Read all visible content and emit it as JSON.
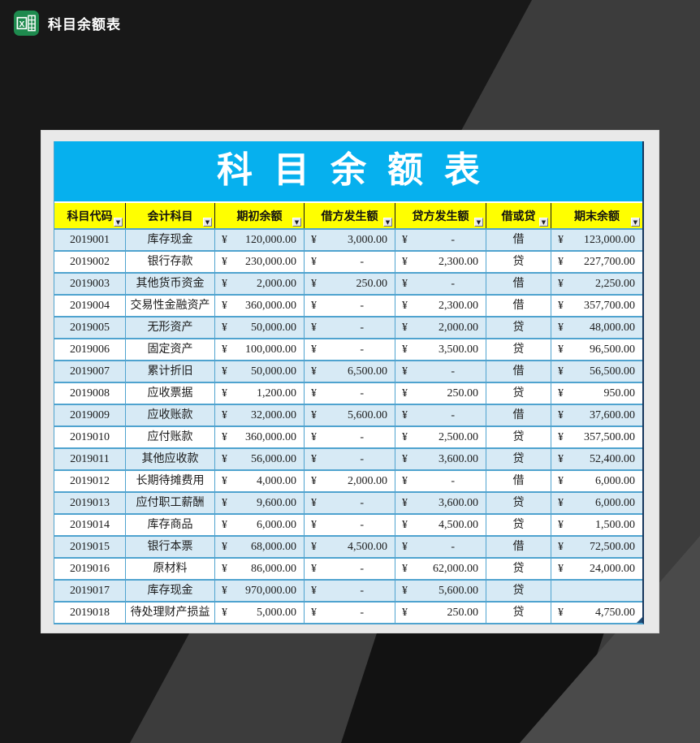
{
  "window": {
    "title": "科目余额表",
    "icon": "excel-logo"
  },
  "sheet": {
    "title": "科目余额表",
    "currency": "¥",
    "filter_icon": "▼",
    "columns": [
      {
        "key": "code",
        "label": "科目代码",
        "type": "text"
      },
      {
        "key": "subject",
        "label": "会计科目",
        "type": "text"
      },
      {
        "key": "opening",
        "label": "期初余额",
        "type": "money"
      },
      {
        "key": "debit",
        "label": "借方发生额",
        "type": "money"
      },
      {
        "key": "credit",
        "label": "贷方发生额",
        "type": "money"
      },
      {
        "key": "direction",
        "label": "借或贷",
        "type": "text"
      },
      {
        "key": "closing",
        "label": "期末余额",
        "type": "money"
      }
    ],
    "rows": [
      {
        "code": "2019001",
        "subject": "库存现金",
        "opening": "120,000.00",
        "debit": "3,000.00",
        "credit": "-",
        "direction": "借",
        "closing": "123,000.00"
      },
      {
        "code": "2019002",
        "subject": "银行存款",
        "opening": "230,000.00",
        "debit": "-",
        "credit": "2,300.00",
        "direction": "贷",
        "closing": "227,700.00"
      },
      {
        "code": "2019003",
        "subject": "其他货币资金",
        "opening": "2,000.00",
        "debit": "250.00",
        "credit": "-",
        "direction": "借",
        "closing": "2,250.00"
      },
      {
        "code": "2019004",
        "subject": "交易性金融资产",
        "opening": "360,000.00",
        "debit": "-",
        "credit": "2,300.00",
        "direction": "借",
        "closing": "357,700.00"
      },
      {
        "code": "2019005",
        "subject": "无形资产",
        "opening": "50,000.00",
        "debit": "-",
        "credit": "2,000.00",
        "direction": "贷",
        "closing": "48,000.00"
      },
      {
        "code": "2019006",
        "subject": "固定资产",
        "opening": "100,000.00",
        "debit": "-",
        "credit": "3,500.00",
        "direction": "贷",
        "closing": "96,500.00"
      },
      {
        "code": "2019007",
        "subject": "累计折旧",
        "opening": "50,000.00",
        "debit": "6,500.00",
        "credit": "-",
        "direction": "借",
        "closing": "56,500.00"
      },
      {
        "code": "2019008",
        "subject": "应收票据",
        "opening": "1,200.00",
        "debit": "-",
        "credit": "250.00",
        "direction": "贷",
        "closing": "950.00"
      },
      {
        "code": "2019009",
        "subject": "应收账款",
        "opening": "32,000.00",
        "debit": "5,600.00",
        "credit": "-",
        "direction": "借",
        "closing": "37,600.00"
      },
      {
        "code": "2019010",
        "subject": "应付账款",
        "opening": "360,000.00",
        "debit": "-",
        "credit": "2,500.00",
        "direction": "贷",
        "closing": "357,500.00"
      },
      {
        "code": "2019011",
        "subject": "其他应收款",
        "opening": "56,000.00",
        "debit": "-",
        "credit": "3,600.00",
        "direction": "贷",
        "closing": "52,400.00"
      },
      {
        "code": "2019012",
        "subject": "长期待摊费用",
        "opening": "4,000.00",
        "debit": "2,000.00",
        "credit": "-",
        "direction": "借",
        "closing": "6,000.00"
      },
      {
        "code": "2019013",
        "subject": "应付职工薪酬",
        "opening": "9,600.00",
        "debit": "-",
        "credit": "3,600.00",
        "direction": "贷",
        "closing": "6,000.00"
      },
      {
        "code": "2019014",
        "subject": "库存商品",
        "opening": "6,000.00",
        "debit": "-",
        "credit": "4,500.00",
        "direction": "贷",
        "closing": "1,500.00"
      },
      {
        "code": "2019015",
        "subject": "银行本票",
        "opening": "68,000.00",
        "debit": "4,500.00",
        "credit": "-",
        "direction": "借",
        "closing": "72,500.00"
      },
      {
        "code": "2019016",
        "subject": "原材料",
        "opening": "86,000.00",
        "debit": "-",
        "credit": "62,000.00",
        "direction": "贷",
        "closing": "24,000.00"
      },
      {
        "code": "2019017",
        "subject": "库存现金",
        "opening": "970,000.00",
        "debit": "-",
        "credit": "5,600.00",
        "direction": "贷",
        "closing": ""
      },
      {
        "code": "2019018",
        "subject": "待处理财产损益",
        "opening": "5,000.00",
        "debit": "-",
        "credit": "250.00",
        "direction": "贷",
        "closing": "4,750.00"
      }
    ]
  },
  "colors": {
    "title_band": "#06b0ee",
    "header_bg": "#ffff00",
    "row_alt": "#d7eaf5",
    "grid": "#4fa3cf",
    "outer_border": "#16365c",
    "excel_green": "#1e8a4e"
  }
}
